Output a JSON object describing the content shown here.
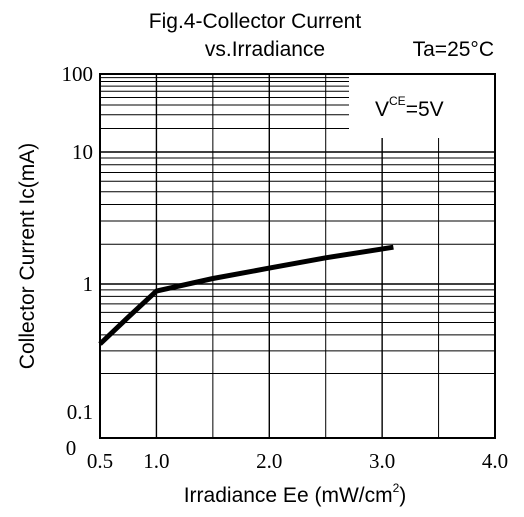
{
  "chart_data": {
    "type": "line",
    "title_line1": "Fig.4-Collector Current",
    "title_line2": "vs.Irradiance",
    "condition": "Ta=25°C",
    "annotation": {
      "base": "V",
      "sup": "CE",
      "rest": "=5V"
    },
    "xlabel": {
      "text": "Irradiance Ee (mW/cm",
      "sup": "2",
      "close": ")"
    },
    "ylabel": "Collector Current Ic(mA)",
    "x_scale": "linear",
    "y_scale": "log",
    "xlim": [
      0.5,
      4.0
    ],
    "ylim": [
      0.1,
      100
    ],
    "x_ticks": [
      {
        "value": 0.5,
        "label": "0.5"
      },
      {
        "value": 1.0,
        "label": "1.0"
      },
      {
        "value": 2.0,
        "label": "2.0"
      },
      {
        "value": 3.0,
        "label": "3.0"
      },
      {
        "value": 4.0,
        "label": "4.0"
      }
    ],
    "y_ticks": [
      {
        "value": 0.1,
        "label": "0.1"
      },
      {
        "value": 1,
        "label": "1"
      },
      {
        "value": 10,
        "label": "10"
      },
      {
        "value": 100,
        "label": "100"
      }
    ],
    "y_origin_label": "0",
    "grid": true,
    "series": [
      {
        "x": [
          0.5,
          0.75,
          1.0,
          1.5,
          2.0,
          2.5,
          3.1
        ],
        "y": [
          0.34,
          0.55,
          0.88,
          1.1,
          1.32,
          1.58,
          1.9
        ]
      }
    ]
  }
}
